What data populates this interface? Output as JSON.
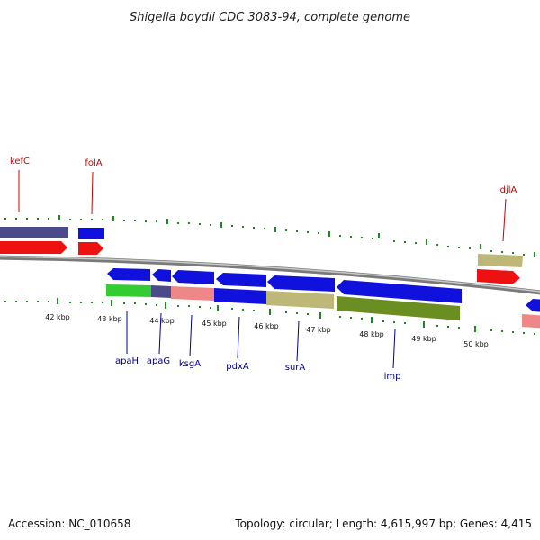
{
  "title": "Shigella boydii CDC 3083-94, complete genome",
  "footer": {
    "accession": "Accession: NC_010658",
    "summary": "Topology: circular; Length: 4,615,997 bp; Genes: 4,415"
  },
  "colors": {
    "forward_label": "#cc0000",
    "reverse_label": "#00008b",
    "tick": "#1a8a1a",
    "backbone": "#888888"
  },
  "scale_labels": [
    "42 kbp",
    "43 kbp",
    "44 kbp",
    "45 kbp",
    "46 kbp",
    "47 kbp",
    "48 kbp",
    "49 kbp",
    "50 kbp"
  ],
  "forward_gene_labels": [
    "kefC",
    "folA",
    "djlA"
  ],
  "reverse_gene_labels": [
    "apaH",
    "apaG",
    "ksgA",
    "pdxA",
    "surA",
    "imp"
  ]
}
